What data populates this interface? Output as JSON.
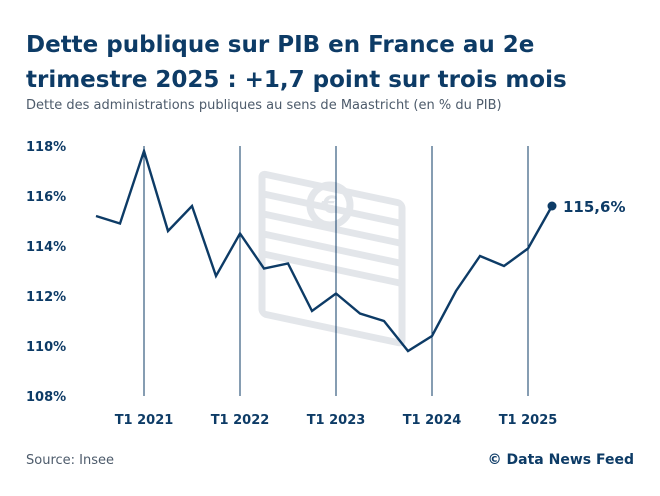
{
  "title": "Dette publique sur PIB en France au 2e trimestre 2025 : +1,7 point sur trois mois",
  "subtitle": "Dette des administrations publiques au sens de Maastricht (en % du PIB)",
  "source": "Source: Insee",
  "credit": "© Data News Feed",
  "end_label": "115,6%",
  "colors": {
    "line": "#0d3b66",
    "grid": "#0d3b66",
    "background_icon": "#e3e6ea"
  },
  "background_icon": "euro-banknotes-icon",
  "chart_data": {
    "type": "line",
    "title": "Dette publique sur PIB en France au 2e trimestre 2025 : +1,7 point sur trois mois",
    "subtitle": "Dette des administrations publiques au sens de Maastricht (en % du PIB)",
    "ylabel": "",
    "xlabel": "",
    "ylim": [
      108,
      118
    ],
    "y_ticks": [
      108,
      110,
      112,
      114,
      116,
      118
    ],
    "y_tick_labels": [
      "108%",
      "110%",
      "112%",
      "114%",
      "116%",
      "118%"
    ],
    "x_tick_labels": [
      "T1 2021",
      "T1 2022",
      "T1 2023",
      "T1 2024",
      "T1 2025"
    ],
    "x_tick_index": [
      2,
      6,
      10,
      14,
      18
    ],
    "x": [
      "T3 2020",
      "T4 2020",
      "T1 2021",
      "T2 2021",
      "T3 2021",
      "T4 2021",
      "T1 2022",
      "T2 2022",
      "T3 2022",
      "T4 2022",
      "T1 2023",
      "T2 2023",
      "T3 2023",
      "T4 2023",
      "T1 2024",
      "T2 2024",
      "T3 2024",
      "T4 2024",
      "T1 2025",
      "T2 2025"
    ],
    "series": [
      {
        "name": "",
        "values": [
          115.2,
          114.9,
          117.8,
          114.6,
          115.6,
          112.8,
          114.5,
          113.1,
          113.3,
          111.4,
          112.1,
          111.3,
          111.0,
          109.8,
          110.4,
          112.2,
          113.6,
          113.2,
          113.9,
          115.6
        ]
      }
    ],
    "vertical_gridlines": true,
    "horizontal_gridlines": false,
    "legend": "none"
  }
}
